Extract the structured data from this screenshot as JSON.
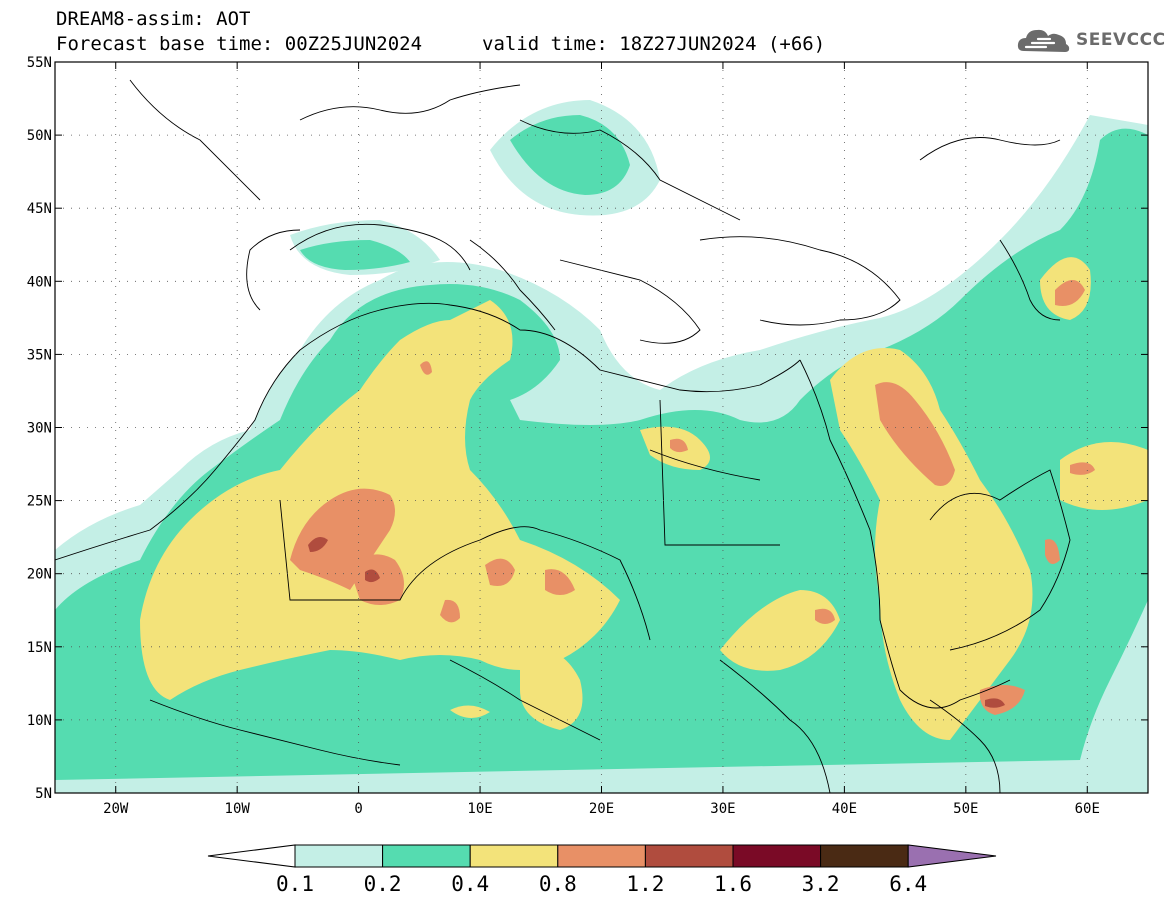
{
  "header": {
    "line1": "DREAM8-assim: AOT",
    "line2": "Forecast base time: 00Z25JUN2024",
    "valid": "valid time: 18Z27JUN2024 (+66)"
  },
  "logo": {
    "text": "SEEVCCC",
    "icon": "cloud-icon",
    "color": "#6b6b6b"
  },
  "map": {
    "lon_range": [
      -25,
      65
    ],
    "lat_range": [
      5,
      55
    ],
    "x_ticks": [
      "20W",
      "10W",
      "0",
      "10E",
      "20E",
      "30E",
      "40E",
      "50E",
      "60E"
    ],
    "y_ticks": [
      "55N",
      "50N",
      "45N",
      "40N",
      "35N",
      "30N",
      "25N",
      "20N",
      "15N",
      "10N",
      "5N"
    ]
  },
  "legend": {
    "levels": [
      "0.1",
      "0.2",
      "0.4",
      "0.8",
      "1.2",
      "1.6",
      "3.2",
      "6.4"
    ],
    "colors": [
      "#c4efe6",
      "#55dcb0",
      "#f3e37a",
      "#e89066",
      "#b04c3e",
      "#7a0a26",
      "#4a2a14",
      "#9a70b0"
    ]
  }
}
